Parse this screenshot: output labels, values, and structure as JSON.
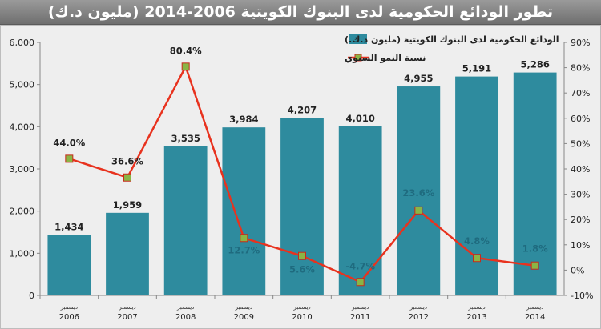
{
  "chart_data": {
    "type": "bar",
    "title": "تطور الودائع الحكومية لدى البنوك الكويتية 2006-2014 (مليون د.ك)",
    "categories": [
      "2006",
      "2007",
      "2008",
      "2009",
      "2010",
      "2011",
      "2012",
      "2013",
      "2014"
    ],
    "category_prefix": "ديسمبر",
    "series": [
      {
        "name": "الودائع الحكومية لدى البنوك الكويتية (مليون د.ك.)",
        "type": "bar",
        "axis": "left",
        "color": "#2e8b9e",
        "values": [
          1434,
          1959,
          3535,
          3984,
          4207,
          4010,
          4955,
          5191,
          5286
        ],
        "labels": [
          "1,434",
          "1,959",
          "3,535",
          "3,984",
          "4,207",
          "4,010",
          "4,955",
          "5,191",
          "5,286"
        ]
      },
      {
        "name": "نسبة النمو السنوي",
        "type": "line",
        "axis": "right",
        "color": "#e8321e",
        "marker_color": "#8ab545",
        "values": [
          44.0,
          36.6,
          80.4,
          12.7,
          5.6,
          -4.7,
          23.6,
          4.8,
          1.8
        ],
        "labels": [
          "44.0%",
          "36.6%",
          "80.4%",
          "12.7%",
          "5.6%",
          "-4.7%",
          "23.6%",
          "4.8%",
          "1.8%"
        ]
      }
    ],
    "y_left": {
      "range": [
        0,
        6000
      ],
      "ticks": [
        "0",
        "1,000",
        "2,000",
        "3,000",
        "4,000",
        "5,000",
        "6,000"
      ]
    },
    "y_right": {
      "range": [
        -10,
        90
      ],
      "ticks": [
        "-10%",
        "0%",
        "10%",
        "20%",
        "30%",
        "40%",
        "50%",
        "60%",
        "70%",
        "80%",
        "90%"
      ]
    },
    "grid": false,
    "legend_position": "top-center"
  }
}
